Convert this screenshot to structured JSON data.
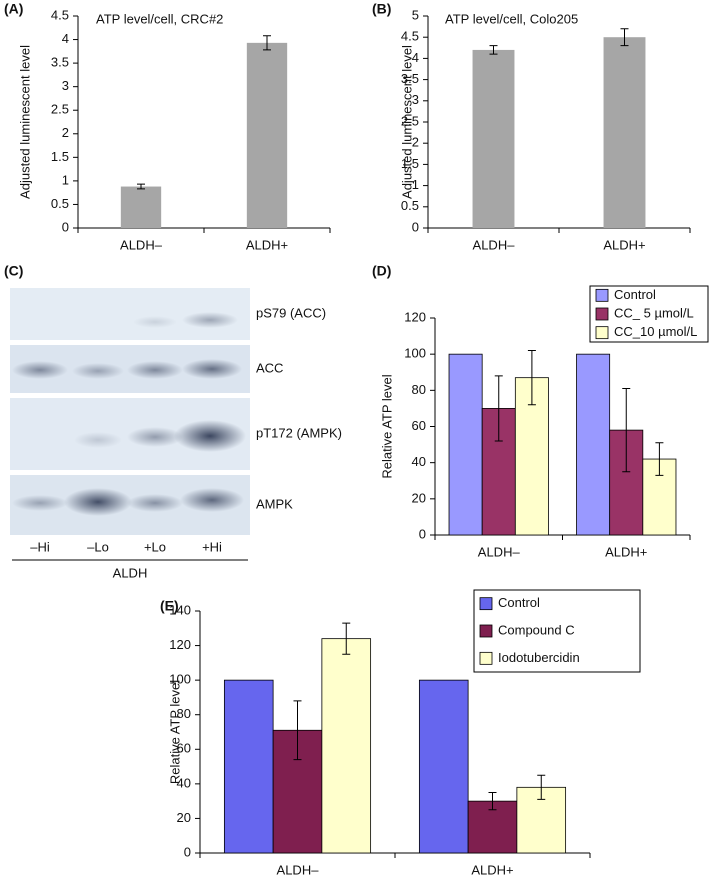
{
  "chart_data": [
    {
      "type": "bar",
      "panel": "(A)",
      "title": "ATP level/cell, CRC#2",
      "y_label": "Adjusted luminescent level",
      "categories": [
        "ALDH–",
        "ALDH+"
      ],
      "values": [
        0.88,
        3.93
      ],
      "errors": [
        0.05,
        0.15
      ],
      "color": "#a6a6a6",
      "ylim": [
        0,
        4.5
      ],
      "yticks": [
        0,
        0.5,
        1,
        1.5,
        2,
        2.5,
        3,
        3.5,
        4,
        4.5
      ]
    },
    {
      "type": "bar",
      "panel": "(B)",
      "title": "ATP level/cell, Colo205",
      "y_label": "Adjusted luminescent level",
      "categories": [
        "ALDH–",
        "ALDH+"
      ],
      "values": [
        4.2,
        4.5
      ],
      "errors": [
        0.1,
        0.2
      ],
      "color": "#a6a6a6",
      "ylim": [
        0,
        5
      ],
      "yticks": [
        0,
        0.5,
        1,
        1.5,
        2,
        2.5,
        3,
        3.5,
        4,
        4.5,
        5
      ]
    },
    {
      "type": "bar",
      "panel": "(D)",
      "y_label": "Relative ATP level",
      "categories": [
        "ALDH–",
        "ALDH+"
      ],
      "series": [
        {
          "name": "Control",
          "color": "#9999ff",
          "values": [
            100,
            100
          ]
        },
        {
          "name": "CC_ 5 µmol/L",
          "color": "#993366",
          "values": [
            70,
            58
          ],
          "errors": [
            18,
            23
          ]
        },
        {
          "name": "CC_10 µmol/L",
          "color": "#ffffcc",
          "values": [
            87,
            42
          ],
          "errors": [
            15,
            9
          ]
        }
      ],
      "ylim": [
        0,
        120
      ],
      "yticks": [
        0,
        20,
        40,
        60,
        80,
        100,
        120
      ],
      "legend": "top-right"
    },
    {
      "type": "bar",
      "panel": "(E)",
      "y_label": "Relative ATP level",
      "categories": [
        "ALDH–",
        "ALDH+"
      ],
      "series": [
        {
          "name": "Control",
          "color": "#6666ee",
          "values": [
            100,
            100
          ]
        },
        {
          "name": "Compound C",
          "color": "#7f1f4f",
          "values": [
            71,
            30
          ],
          "errors": [
            17,
            5
          ]
        },
        {
          "name": "Iodotubercidin",
          "color": "#ffffcc",
          "values": [
            124,
            38
          ],
          "errors": [
            9,
            7
          ]
        }
      ],
      "ylim": [
        0,
        140
      ],
      "yticks": [
        0,
        20,
        40,
        60,
        80,
        100,
        120,
        140
      ],
      "legend": "top-right"
    }
  ],
  "blot": {
    "panel": "(C)",
    "rows": [
      "pS79 (ACC)",
      "ACC",
      "pT172 (AMPK)",
      "AMPK"
    ],
    "lanes": [
      "–Hi",
      "–Lo",
      "+Lo",
      "+Hi"
    ],
    "group": "ALDH"
  }
}
